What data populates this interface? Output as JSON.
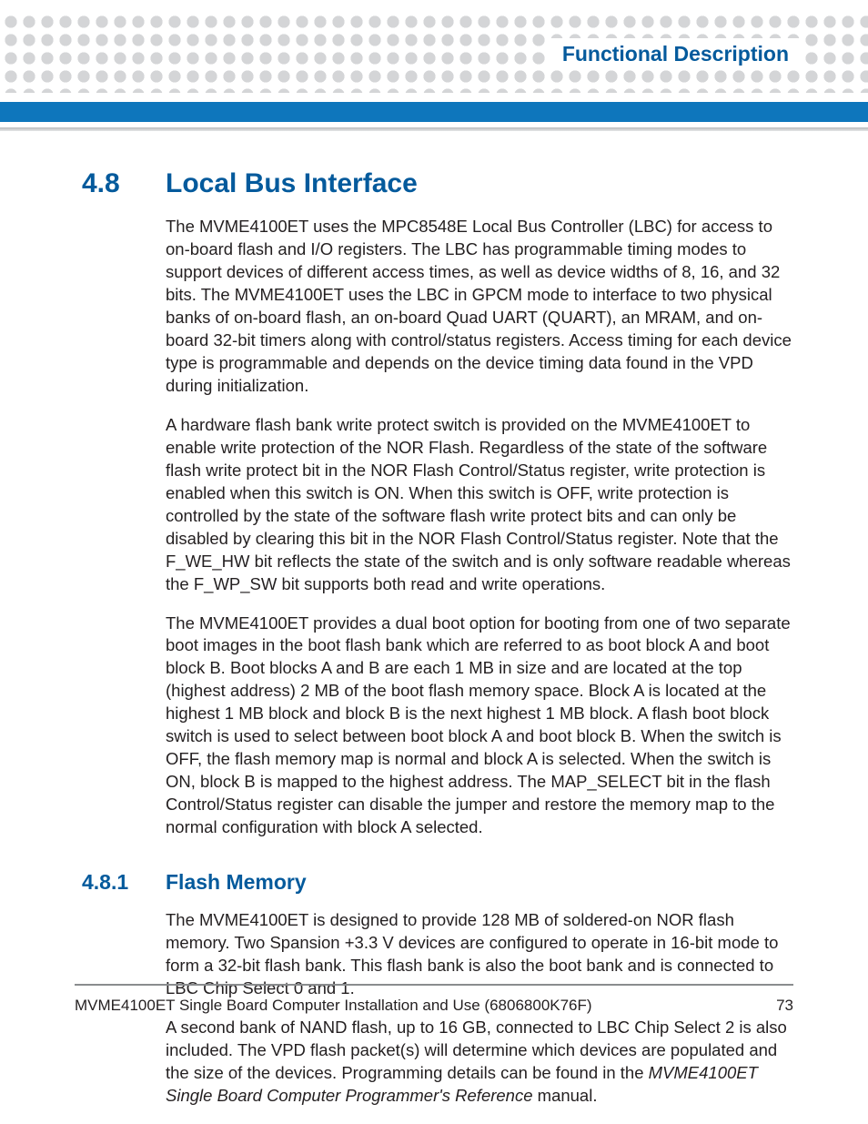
{
  "header": {
    "running_title": "Functional Description",
    "accent_color": "#045a9c",
    "bar_color": "#0e76bc",
    "dot_color": "#d4d5d7"
  },
  "section": {
    "number": "4.8",
    "title": "Local Bus Interface",
    "paragraphs": [
      "The MVME4100ET uses the MPC8548E Local Bus Controller (LBC) for access to on-board flash and I/O registers. The LBC has programmable timing modes to support devices of different access times, as well as device widths of 8, 16, and 32 bits. The MVME4100ET uses the LBC in GPCM mode to interface to two physical banks of on-board flash, an on-board Quad UART (QUART), an MRAM, and on-board 32-bit timers along with control/status registers. Access timing for each device type is programmable and depends on the device timing data found in the VPD during initialization.",
      "A hardware flash bank write protect switch is provided on the MVME4100ET to enable write protection of the NOR Flash. Regardless of the state of the software flash write protect bit in the NOR Flash Control/Status register, write protection is enabled when this switch is ON. When this switch is OFF, write protection is controlled by the state of the software flash write protect bits and can only be disabled by clearing this bit in the NOR Flash Control/Status register. Note that the F_WE_HW bit reflects the state of the switch and is only software readable whereas the F_WP_SW bit supports both read and write operations.",
      "The MVME4100ET provides a dual boot option for booting from one of two separate boot images in the boot flash bank which are referred to as boot block A and boot block B. Boot blocks A and B are each 1 MB in size and are located at the top (highest address) 2 MB of the boot flash memory space. Block A is located at the highest 1 MB block and block B is the next highest 1 MB block. A flash boot block switch is used to select between boot block A and boot block B. When the switch is OFF, the flash memory map is normal and block A is selected. When the switch is ON, block B is mapped to the highest address. The MAP_SELECT bit in the flash Control/Status register can disable the jumper and restore the memory map to the normal configuration with block A selected."
    ]
  },
  "subsection": {
    "number": "4.8.1",
    "title": "Flash Memory",
    "paragraphs": [
      "The MVME4100ET is designed to provide 128 MB of soldered-on NOR flash memory. Two Spansion +3.3 V devices are configured to operate in 16-bit mode to form a 32-bit flash bank. This flash bank is also the boot bank and is connected to LBC Chip Select 0 and 1."
    ],
    "paragraph_with_ref": {
      "pre": "A second bank of NAND flash, up to 16 GB, connected to LBC Chip Select 2 is also included. The VPD flash packet(s) will determine which devices are populated and the size of the devices. Programming details can be found in the ",
      "ref": "MVME4100ET Single Board Computer Programmer's Reference",
      "post": " manual."
    }
  },
  "footer": {
    "text": "MVME4100ET Single Board Computer Installation and Use (6806800K76F)",
    "page": "73"
  }
}
